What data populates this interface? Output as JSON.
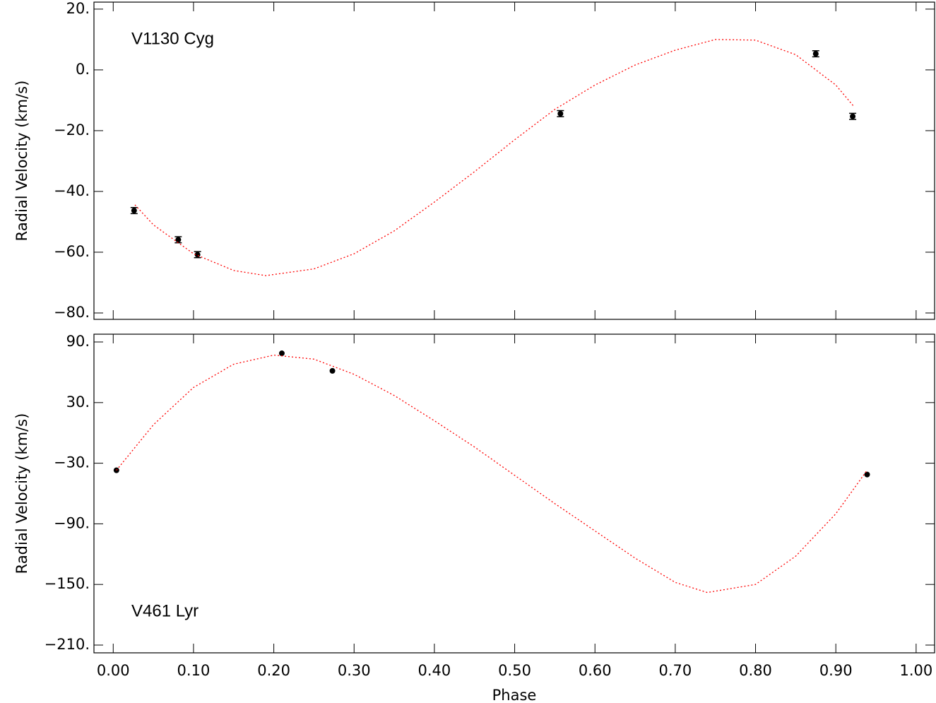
{
  "chart_data": [
    {
      "type": "scatter",
      "annotation": "V1130 Cyg",
      "y_label": "Radial Velocity (km/s)",
      "xlim": [
        -0.024,
        1.023
      ],
      "ylim": [
        -82.1,
        22.3
      ],
      "yticks": [
        {
          "value": 20,
          "label": "20."
        },
        {
          "value": 0,
          "label": "0."
        },
        {
          "value": -20,
          "label": "−20."
        },
        {
          "value": -40,
          "label": "−40."
        },
        {
          "value": -60,
          "label": "−60."
        },
        {
          "value": -80,
          "label": "−80."
        }
      ],
      "series": [
        {
          "type": "scatter",
          "color": "#000000",
          "x": [
            0.026,
            0.081,
            0.105,
            0.557,
            0.875,
            0.921
          ],
          "values": [
            -46.3,
            -55.9,
            -60.8,
            -14.4,
            5.3,
            -15.3
          ],
          "errors": [
            1,
            1,
            1,
            1,
            1,
            1
          ]
        },
        {
          "type": "line",
          "color": "#ff0000",
          "x": [
            0.027,
            0.05,
            0.1,
            0.15,
            0.19,
            0.25,
            0.3,
            0.35,
            0.4,
            0.45,
            0.5,
            0.55,
            0.6,
            0.65,
            0.7,
            0.75,
            0.8,
            0.85,
            0.9,
            0.922
          ],
          "values": [
            -44.4,
            -51,
            -60.5,
            -66,
            -67.7,
            -65.5,
            -60.5,
            -53,
            -43.5,
            -33.5,
            -23,
            -13,
            -5,
            1.6,
            6.5,
            10,
            9.8,
            5,
            -5,
            -11.9
          ]
        }
      ]
    },
    {
      "type": "scatter",
      "annotation": "V461 Lyr",
      "y_label": "Radial Velocity (km/s)",
      "x_label": "Phase",
      "xlim": [
        -0.024,
        1.023
      ],
      "ylim": [
        -217.7,
        97.7
      ],
      "xticks": [
        {
          "value": 0,
          "label": "0.00"
        },
        {
          "value": 0.1,
          "label": "0.10"
        },
        {
          "value": 0.2,
          "label": "0.20"
        },
        {
          "value": 0.3,
          "label": "0.30"
        },
        {
          "value": 0.4,
          "label": "0.40"
        },
        {
          "value": 0.5,
          "label": "0.50"
        },
        {
          "value": 0.6,
          "label": "0.60"
        },
        {
          "value": 0.7,
          "label": "0.70"
        },
        {
          "value": 0.8,
          "label": "0.80"
        },
        {
          "value": 0.9,
          "label": "0.90"
        },
        {
          "value": 1,
          "label": "1.00"
        }
      ],
      "yticks": [
        {
          "value": 90,
          "label": "90."
        },
        {
          "value": 30,
          "label": "30."
        },
        {
          "value": -30,
          "label": "−30."
        },
        {
          "value": -90,
          "label": "−90."
        },
        {
          "value": -150,
          "label": "−150."
        },
        {
          "value": -210,
          "label": "−210."
        }
      ],
      "series": [
        {
          "type": "scatter",
          "color": "#000000",
          "x": [
            0.004,
            0.21,
            0.273,
            0.939
          ],
          "values": [
            -37,
            78.8,
            61.4,
            -41.2
          ]
        },
        {
          "type": "line",
          "color": "#ff0000",
          "x": [
            0.004,
            0.05,
            0.1,
            0.15,
            0.2,
            0.25,
            0.3,
            0.35,
            0.4,
            0.45,
            0.5,
            0.55,
            0.6,
            0.65,
            0.7,
            0.74,
            0.8,
            0.85,
            0.9,
            0.939
          ],
          "values": [
            -37,
            8,
            45,
            68,
            77,
            73,
            58,
            37,
            12,
            -14,
            -42,
            -70,
            -97,
            -124,
            -148,
            -158,
            -150,
            -122,
            -80,
            -37
          ]
        }
      ]
    }
  ]
}
